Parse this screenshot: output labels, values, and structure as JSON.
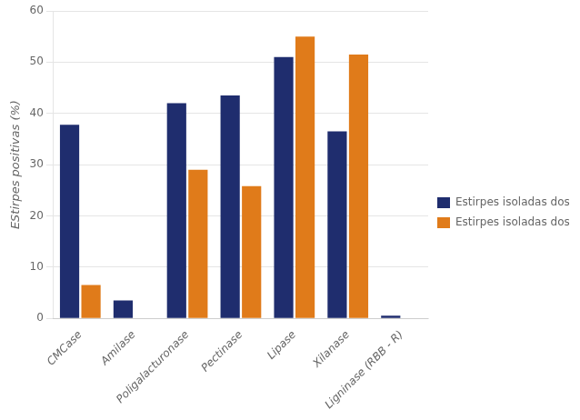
{
  "chart_data": {
    "type": "bar",
    "categories": [
      "CMCase",
      "Amilase",
      "Poligalacturonase",
      "Pectinase",
      "Lipase",
      "Xilanase",
      "Ligninase (RBB - R)"
    ],
    "series": [
      {
        "name": "Estirpes isoladas dos bitus",
        "color": "#1f2d6e",
        "values": [
          37.8,
          3.5,
          42.0,
          43.5,
          51.0,
          36.5,
          0.5
        ]
      },
      {
        "name": "Estirpes isoladas dos solos",
        "color": "#e07b1a",
        "values": [
          6.5,
          0,
          29.0,
          25.8,
          55.0,
          51.5,
          0
        ]
      }
    ],
    "ylabel": "EStirpes positivas (%)",
    "ylim": [
      0,
      60
    ],
    "yticks": [
      0,
      10,
      20,
      30,
      40,
      50,
      60
    ],
    "grid": true,
    "legend": "right"
  }
}
